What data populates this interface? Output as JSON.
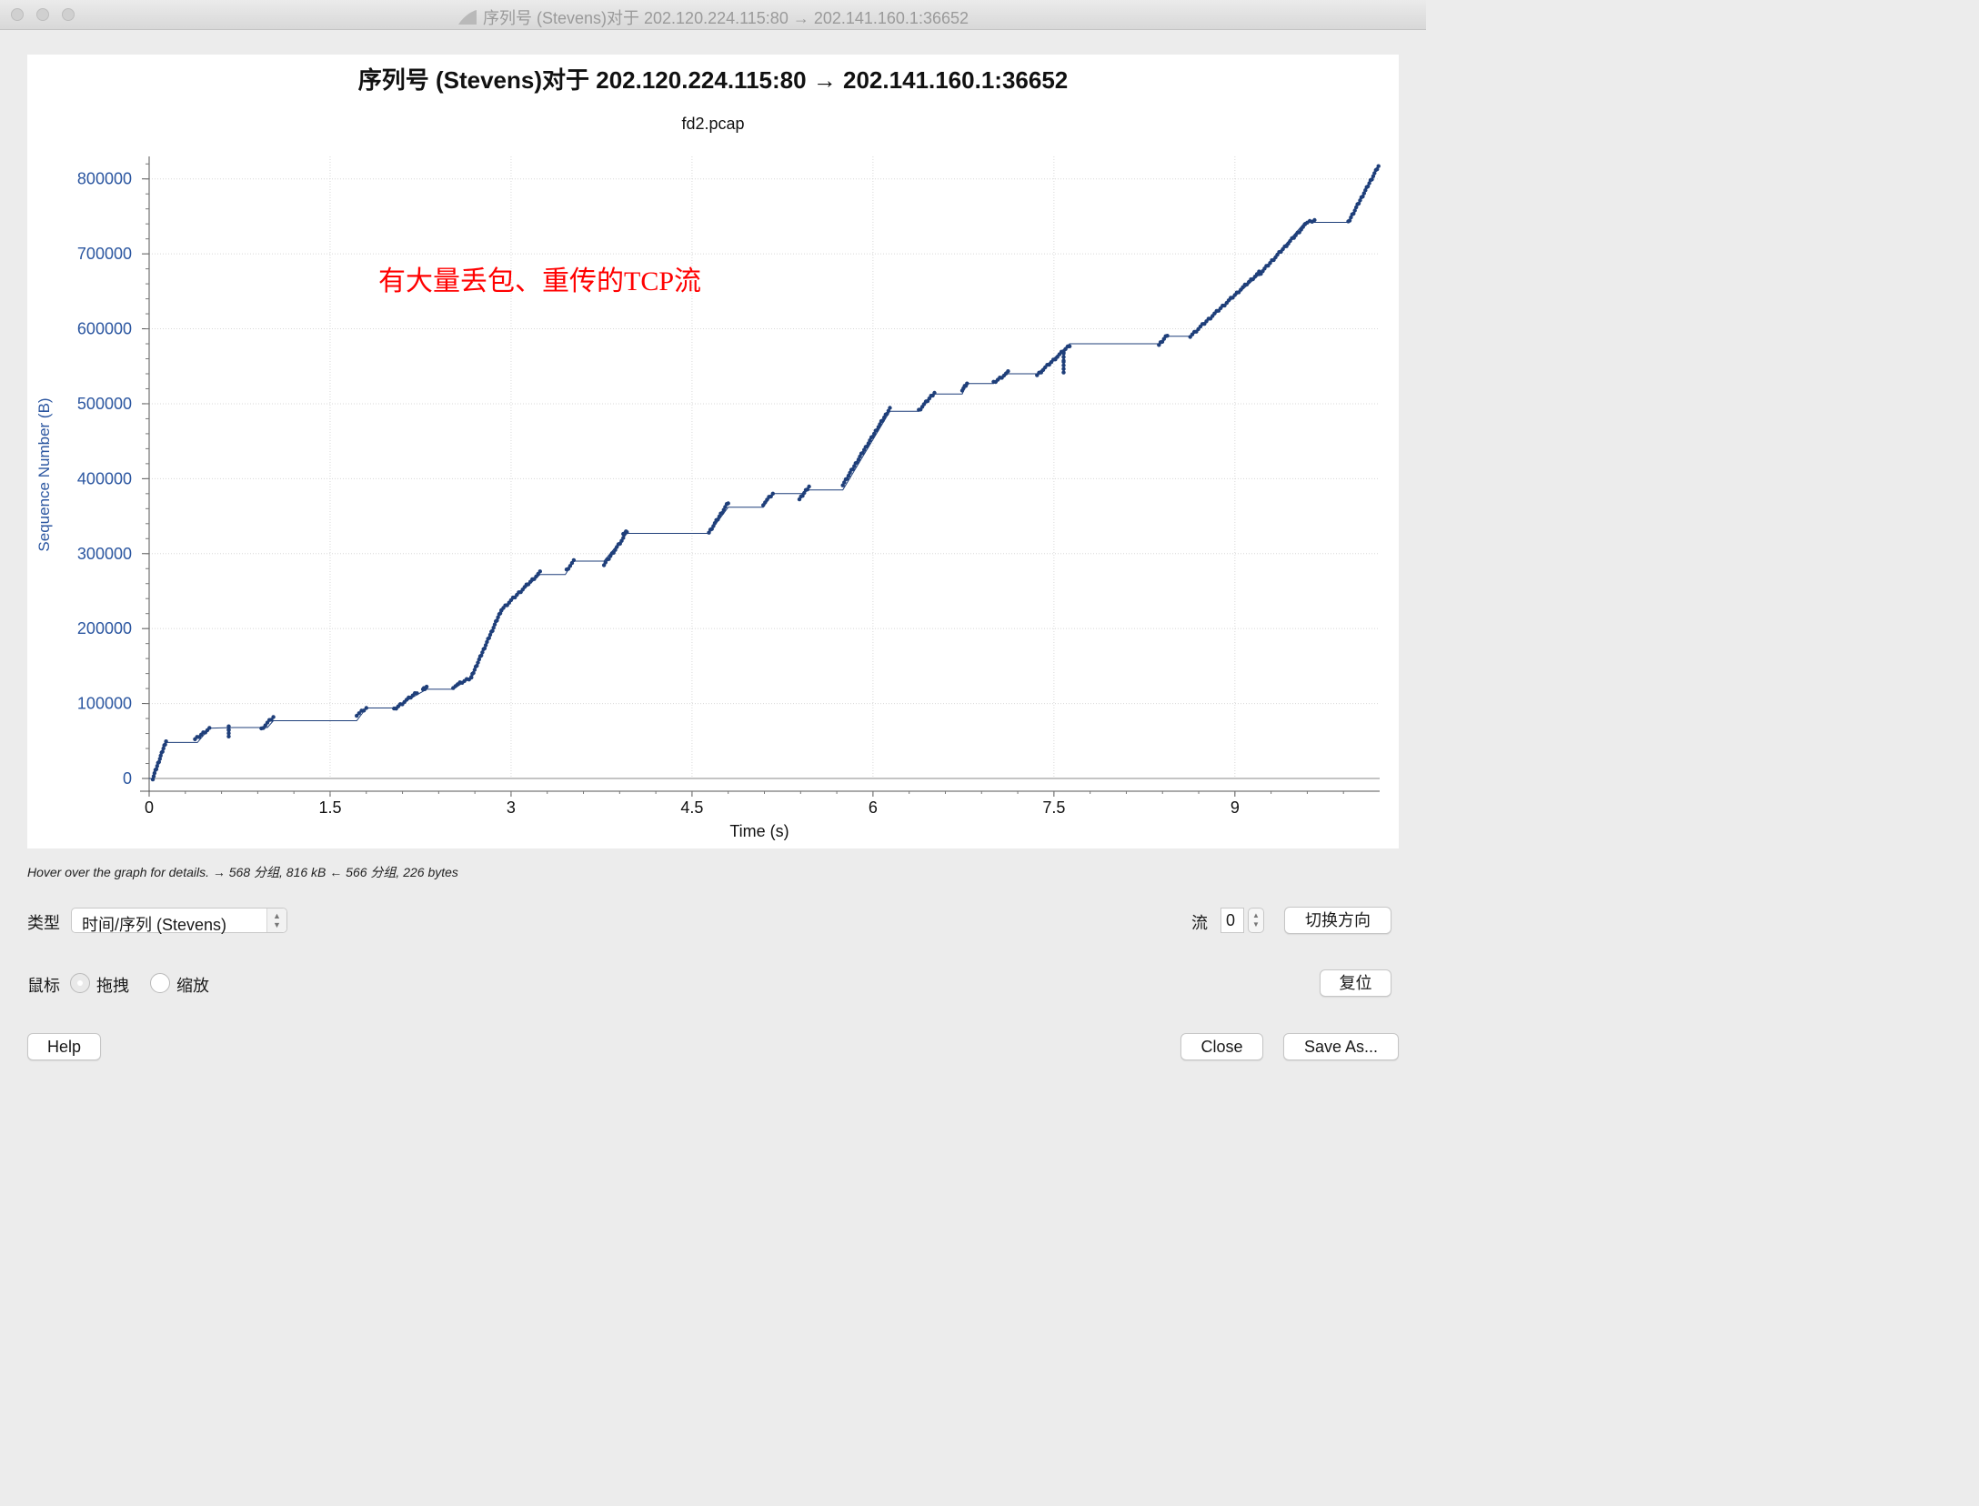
{
  "window": {
    "title": "序列号 (Stevens)对于 202.120.224.115:80 → 202.141.160.1:36652"
  },
  "chart_data": {
    "type": "scatter",
    "title": "序列号 (Stevens)对于 202.120.224.115:80 → 202.141.160.1:36652",
    "subtitle": "fd2.pcap",
    "xlabel": "Time (s)",
    "ylabel": "Sequence Number (B)",
    "xlim": [
      0,
      10.2
    ],
    "ylim": [
      0,
      830000
    ],
    "x_ticks": [
      0,
      1.5,
      3,
      4.5,
      6,
      7.5,
      9
    ],
    "x_tick_labels": [
      "0",
      "1.5",
      "3",
      "4.5",
      "6",
      "7.5",
      "9"
    ],
    "y_ticks": [
      0,
      100000,
      200000,
      300000,
      400000,
      500000,
      600000,
      700000,
      800000
    ],
    "y_tick_labels": [
      "0",
      "100000",
      "200000",
      "300000",
      "400000",
      "500000",
      "600000",
      "700000",
      "800000"
    ],
    "grid": true,
    "annotation": "有大量丢包、重传的TCP流",
    "series_color": "#1f3f7a",
    "annotation_color": "#ff0000",
    "segments": [
      {
        "x0": 0.03,
        "x1": 0.14,
        "y0": 0,
        "y1": 50000
      },
      {
        "x0": 0.38,
        "x1": 0.5,
        "y0": 52000,
        "y1": 67000
      },
      {
        "x0": 0.66,
        "x1": 0.66,
        "y0": 57000,
        "y1": 70000
      },
      {
        "x0": 0.93,
        "x1": 1.03,
        "y0": 66000,
        "y1": 82000
      },
      {
        "x0": 1.72,
        "x1": 1.8,
        "y0": 84000,
        "y1": 94000
      },
      {
        "x0": 2.03,
        "x1": 2.22,
        "y0": 92000,
        "y1": 115000
      },
      {
        "x0": 2.27,
        "x1": 2.3,
        "y0": 119000,
        "y1": 122000
      },
      {
        "x0": 2.52,
        "x1": 2.67,
        "y0": 122000,
        "y1": 135000
      },
      {
        "x0": 2.67,
        "x1": 2.92,
        "y0": 135000,
        "y1": 225000
      },
      {
        "x0": 2.92,
        "x1": 3.24,
        "y0": 225000,
        "y1": 275000
      },
      {
        "x0": 3.46,
        "x1": 3.52,
        "y0": 278000,
        "y1": 290000
      },
      {
        "x0": 3.77,
        "x1": 3.93,
        "y0": 285000,
        "y1": 320000
      },
      {
        "x0": 3.93,
        "x1": 3.96,
        "y0": 325000,
        "y1": 330000
      },
      {
        "x0": 4.64,
        "x1": 4.8,
        "y0": 328000,
        "y1": 368000
      },
      {
        "x0": 5.09,
        "x1": 5.17,
        "y0": 366000,
        "y1": 380000
      },
      {
        "x0": 5.39,
        "x1": 5.47,
        "y0": 372000,
        "y1": 390000
      },
      {
        "x0": 5.75,
        "x1": 6.14,
        "y0": 392000,
        "y1": 494000
      },
      {
        "x0": 6.38,
        "x1": 6.51,
        "y0": 491000,
        "y1": 515000
      },
      {
        "x0": 6.74,
        "x1": 6.78,
        "y0": 518000,
        "y1": 527000
      },
      {
        "x0": 7.0,
        "x1": 7.12,
        "y0": 528000,
        "y1": 542000
      },
      {
        "x0": 7.36,
        "x1": 7.63,
        "y0": 538000,
        "y1": 578000
      },
      {
        "x0": 7.58,
        "x1": 7.58,
        "y0": 543000,
        "y1": 570000
      },
      {
        "x0": 8.37,
        "x1": 8.44,
        "y0": 578000,
        "y1": 592000
      },
      {
        "x0": 8.63,
        "x1": 9.2,
        "y0": 590000,
        "y1": 675000
      },
      {
        "x0": 9.2,
        "x1": 9.58,
        "y0": 672000,
        "y1": 738000
      },
      {
        "x0": 9.58,
        "x1": 9.66,
        "y0": 740000,
        "y1": 745000
      },
      {
        "x0": 9.94,
        "x1": 10.19,
        "y0": 742000,
        "y1": 817000
      }
    ],
    "stair_path": [
      [
        0.0,
        0
      ],
      [
        0.03,
        0
      ],
      [
        0.14,
        48000
      ],
      [
        0.4,
        48000
      ],
      [
        0.5,
        67000
      ],
      [
        0.7,
        68000
      ],
      [
        0.98,
        68000
      ],
      [
        1.03,
        77000
      ],
      [
        1.72,
        77000
      ],
      [
        1.8,
        94000
      ],
      [
        2.03,
        94000
      ],
      [
        2.3,
        119000
      ],
      [
        2.52,
        119000
      ],
      [
        2.67,
        135000
      ],
      [
        2.92,
        225000
      ],
      [
        3.24,
        272000
      ],
      [
        3.45,
        272000
      ],
      [
        3.52,
        290000
      ],
      [
        3.77,
        290000
      ],
      [
        3.96,
        327000
      ],
      [
        4.64,
        327000
      ],
      [
        4.8,
        362000
      ],
      [
        5.09,
        362000
      ],
      [
        5.17,
        380000
      ],
      [
        5.41,
        380000
      ],
      [
        5.47,
        385000
      ],
      [
        5.75,
        385000
      ],
      [
        6.14,
        490000
      ],
      [
        6.38,
        490000
      ],
      [
        6.51,
        513000
      ],
      [
        6.74,
        513000
      ],
      [
        6.78,
        527000
      ],
      [
        7.0,
        527000
      ],
      [
        7.12,
        540000
      ],
      [
        7.36,
        540000
      ],
      [
        7.63,
        580000
      ],
      [
        8.37,
        580000
      ],
      [
        8.44,
        590000
      ],
      [
        8.63,
        590000
      ],
      [
        9.2,
        672000
      ],
      [
        9.58,
        742000
      ],
      [
        9.94,
        742000
      ],
      [
        10.19,
        817000
      ]
    ]
  },
  "status_text": "Hover over the graph for details. → 568 分组, 816 kB ← 566 分组, 226 bytes",
  "controls": {
    "type_label": "类型",
    "type_value": "时间/序列 (Stevens)",
    "stream_label": "流",
    "stream_value": "0",
    "switch_direction": "切换方向",
    "mouse_label": "鼠标",
    "drag_label": "拖拽",
    "zoom_label": "缩放",
    "reset": "复位",
    "help": "Help",
    "close": "Close",
    "save_as": "Save As..."
  }
}
